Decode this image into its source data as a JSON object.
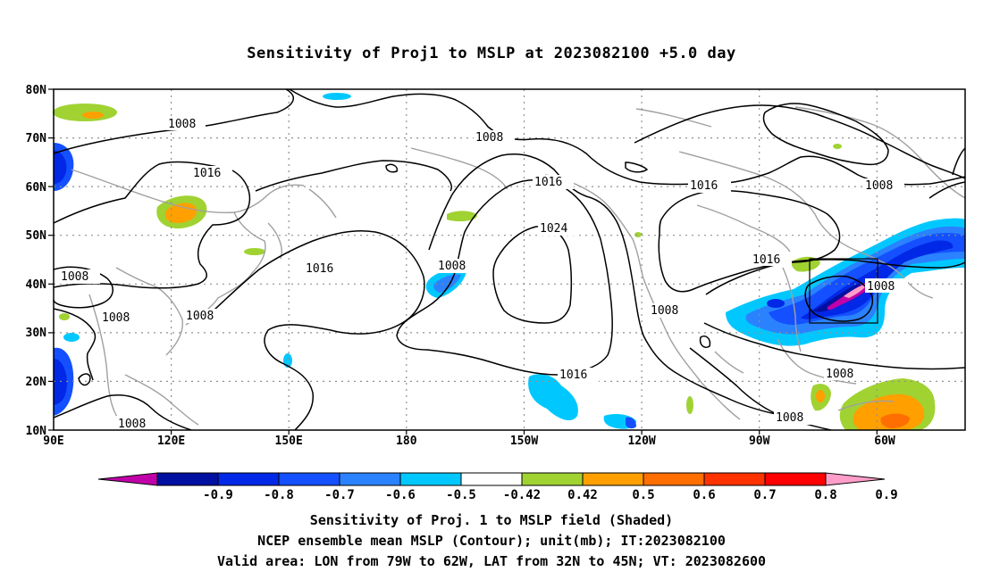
{
  "title": "Sensitivity of Proj1 to MSLP at 2023082100 +5.0 day",
  "lat_labels": [
    "80N",
    "70N",
    "60N",
    "50N",
    "40N",
    "30N",
    "20N",
    "10N"
  ],
  "lon_labels": [
    "90E",
    "120E",
    "150E",
    "180",
    "150W",
    "120W",
    "90W",
    "60W"
  ],
  "contour_labels": [
    "1008",
    "1008",
    "1016",
    "1008",
    "1016",
    "1016",
    "1016",
    "1024",
    "1008",
    "1008",
    "1008",
    "1016",
    "1008",
    "1008",
    "1016",
    "1008",
    "1008",
    "1008",
    "1008"
  ],
  "colorbar": {
    "ticks": [
      "-0.9",
      "-0.8",
      "-0.7",
      "-0.6",
      "-0.5",
      "-0.42",
      "0.42",
      "0.5",
      "0.6",
      "0.7",
      "0.8",
      "0.9"
    ],
    "colors": [
      "#c000a8",
      "#0010a0",
      "#0028e6",
      "#1450ff",
      "#2a82ff",
      "#00c8ff",
      "#ffffff",
      "#a0d232",
      "#ffa000",
      "#ff6e00",
      "#ff3200",
      "#ff0000",
      "#ff9ec8"
    ]
  },
  "captions": [
    "Sensitivity of Proj. 1 to MSLP field (Shaded)",
    "NCEP ensemble mean MSLP (Contour); unit(mb); IT:2023082100",
    "Valid area: LON from 79W to 62W, LAT from 32N to 45N; VT: 2023082600"
  ],
  "colors": {
    "coast": "#a0a0a0",
    "grid": "#909090",
    "contour": "#000000"
  }
}
